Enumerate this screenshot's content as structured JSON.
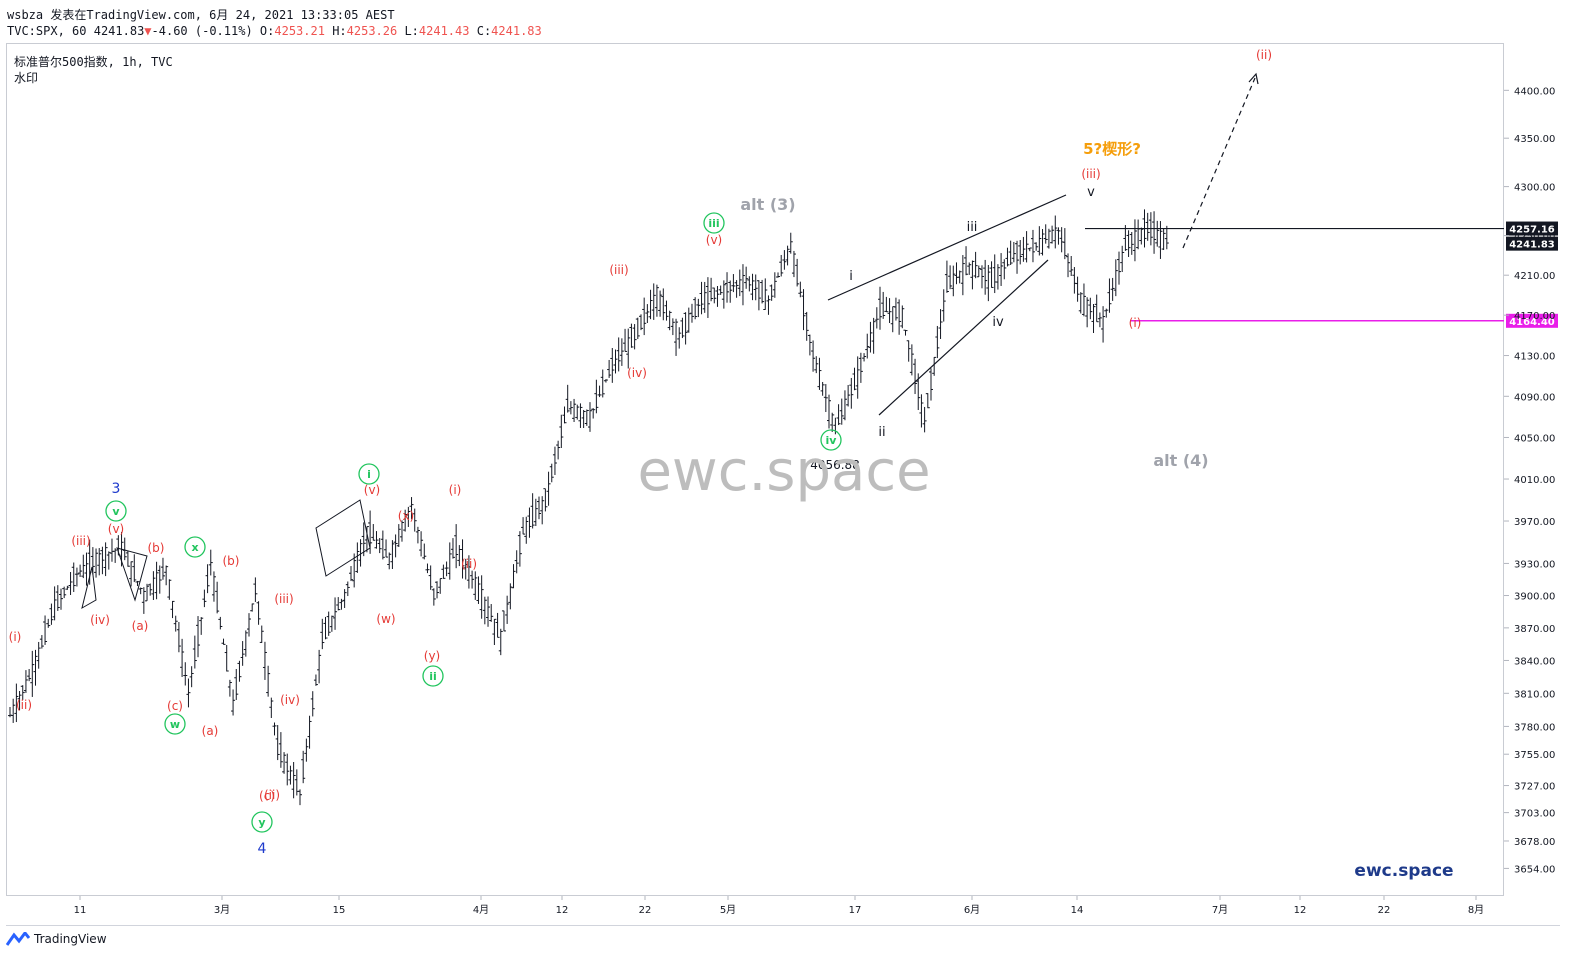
{
  "header": {
    "line1": "wsbza 发表在TradingView.com, 6月 24, 2021 13:33:05 AEST",
    "symbol": "TVC:SPX, 60",
    "last": "4241.83",
    "change_arrow": "▼",
    "change": "-4.60 (-0.11%)",
    "o_label": "O:",
    "o": "4253.21",
    "h_label": "H:",
    "h": "4253.26",
    "l_label": "L:",
    "l": "4241.43",
    "c_label": "C:",
    "c": "4241.83"
  },
  "legend": {
    "title": "标准普尔500指数, 1h, TVC",
    "subtitle": "水印"
  },
  "footer": {
    "brand": "TradingView"
  },
  "watermark": {
    "center": "ewc.space",
    "corner": "ewc.space"
  },
  "colors": {
    "bars": "#131722",
    "red_label": "#e53935",
    "green_label": "#22c55e",
    "blue_label": "#1e3acc",
    "orange_label": "#f59e0b",
    "gray_label": "#a0a3ab",
    "magenta": "#e91ee9",
    "axis_box": "#131722"
  },
  "chart_data": {
    "type": "ohlc",
    "scale": "log",
    "ylim": [
      3630,
      4450
    ],
    "y_ticks": [
      3654,
      3678,
      3703,
      3727,
      3755,
      3780,
      3810,
      3840,
      3870,
      3900,
      3930,
      3970,
      4010,
      4050,
      4090,
      4130,
      4170,
      4210,
      4250,
      4300,
      4350,
      4400
    ],
    "y_tick_labels": [
      "3654.00",
      "3678.00",
      "3703.00",
      "3727.00",
      "3755.00",
      "3780.00",
      "3810.00",
      "3840.00",
      "3870.00",
      "3900.00",
      "3930.00",
      "3970.00",
      "4010.00",
      "4050.00",
      "4090.00",
      "4130.00",
      "4170.00",
      "4210.00",
      "4250.00",
      "4300.00",
      "4350.00",
      "4400.00"
    ],
    "x_tick_labels": [
      "11",
      "3月",
      "15",
      "4月",
      "12",
      "22",
      "5月",
      "17",
      "6月",
      "14",
      "7月",
      "12",
      "22",
      "8月"
    ],
    "price_path": [
      [
        0,
        3790
      ],
      [
        1,
        3830
      ],
      [
        2,
        3890
      ],
      [
        3,
        3920
      ],
      [
        4,
        3935
      ],
      [
        5,
        3945
      ],
      [
        6,
        3900
      ],
      [
        7,
        3925
      ],
      [
        8,
        3810
      ],
      [
        9,
        3930
      ],
      [
        10,
        3800
      ],
      [
        11,
        3905
      ],
      [
        12,
        3760
      ],
      [
        13,
        3720
      ],
      [
        14,
        3860
      ],
      [
        15,
        3900
      ],
      [
        16,
        3960
      ],
      [
        17,
        3935
      ],
      [
        18,
        3985
      ],
      [
        19,
        3900
      ],
      [
        20,
        3945
      ],
      [
        21,
        3905
      ],
      [
        22,
        3860
      ],
      [
        23,
        3960
      ],
      [
        24,
        3990
      ],
      [
        25,
        4080
      ],
      [
        26,
        4070
      ],
      [
        27,
        4120
      ],
      [
        28,
        4150
      ],
      [
        29,
        4190
      ],
      [
        30,
        4150
      ],
      [
        31,
        4185
      ],
      [
        32,
        4195
      ],
      [
        33,
        4205
      ],
      [
        34,
        4185
      ],
      [
        35,
        4240
      ],
      [
        36,
        4130
      ],
      [
        37,
        4058
      ],
      [
        38,
        4110
      ],
      [
        39,
        4175
      ],
      [
        40,
        4170
      ],
      [
        41,
        4065
      ],
      [
        42,
        4200
      ],
      [
        43,
        4220
      ],
      [
        44,
        4205
      ],
      [
        45,
        4230
      ],
      [
        46,
        4240
      ],
      [
        47,
        4255
      ],
      [
        48,
        4185
      ],
      [
        49,
        4164
      ],
      [
        50,
        4240
      ],
      [
        51,
        4257
      ],
      [
        52,
        4242
      ]
    ],
    "marks": {
      "last_price": 4241.83,
      "high_line": 4257.16,
      "low_line": 4164.4,
      "low_annotation": 4056.88
    },
    "wave_labels": {
      "red": [
        "(i)",
        "(ii)",
        "(iii)",
        "(iv)",
        "(v)",
        "(a)",
        "(b)",
        "(c)",
        "(a)",
        "(b)",
        "(c)",
        "(ii)",
        "(iii)",
        "(iv)",
        "(v)",
        "(w)",
        "(x)",
        "(y)",
        "(i)",
        "(ii)",
        "(iii)",
        "(iv)",
        "(v)",
        "(i)",
        "(ii)",
        "(iii)",
        "(i)"
      ],
      "green": [
        "v",
        "w",
        "x",
        "y",
        "i",
        "ii",
        "iii",
        "iv"
      ],
      "blue": [
        "3",
        "4"
      ],
      "black": [
        "i",
        "ii",
        "iii",
        "iv",
        "v"
      ],
      "gray": [
        "alt (3)",
        "alt (4)"
      ],
      "orange": [
        "5?楔形?"
      ]
    }
  }
}
